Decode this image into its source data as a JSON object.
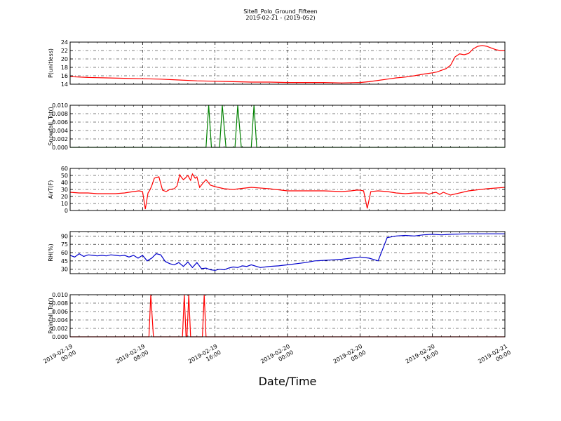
{
  "figure": {
    "title": "Site8_Polo_Ground_Fifteen",
    "subtitle": "2019-02-21 - (2019-052)",
    "xlabel": "Date/Time",
    "x_ticks": [
      "2019-02-19\n00:00",
      "2019-02-19\n08:00",
      "2019-02-19\n16:00",
      "2019-02-20\n00:00",
      "2019-02-20\n08:00",
      "2019-02-20\n16:00",
      "2019-02-21\n00:00"
    ]
  },
  "chart_data": [
    {
      "type": "line",
      "ylabel": "P(unitless)",
      "ylim": [
        14,
        24
      ],
      "yticks": [
        "14",
        "16",
        "18",
        "20",
        "22",
        "24"
      ],
      "grid": true,
      "series": [
        {
          "color": "#ff0000",
          "x": [
            0,
            2,
            4,
            6,
            8,
            10,
            12,
            14,
            16,
            18,
            20,
            22,
            24,
            26,
            28,
            30,
            32,
            33,
            34,
            35,
            36,
            37,
            38,
            39,
            40,
            40.5,
            41,
            41.5,
            42,
            42.5,
            43,
            43.5,
            44,
            44.5,
            45,
            45.5,
            46,
            46.5,
            47,
            47.5,
            48
          ],
          "y": [
            15.8,
            15.6,
            15.5,
            15.4,
            15.3,
            15.2,
            15.0,
            14.8,
            14.7,
            14.6,
            14.5,
            14.5,
            14.4,
            14.4,
            14.4,
            14.3,
            14.4,
            14.6,
            14.9,
            15.2,
            15.5,
            15.7,
            16.0,
            16.4,
            16.7,
            16.9,
            17.3,
            17.7,
            18.5,
            20.5,
            21.2,
            21.0,
            21.3,
            22.4,
            23.0,
            23.2,
            23.0,
            22.6,
            22.2,
            22.0,
            22.0
          ]
        }
      ]
    },
    {
      "type": "line",
      "ylabel": "Snowfall_Tot()",
      "ylim": [
        0,
        0.01
      ],
      "yticks": [
        "0.000",
        "0.002",
        "0.004",
        "0.006",
        "0.008",
        "0.010"
      ],
      "grid": true,
      "series": [
        {
          "color": "#008000",
          "x": [
            0,
            15,
            15.3,
            15.6,
            16.5,
            16.8,
            17.2,
            18.2,
            18.5,
            18.9,
            20.0,
            20.3,
            20.6,
            48
          ],
          "y": [
            0,
            0,
            0.01,
            0,
            0,
            0.01,
            0,
            0,
            0.01,
            0,
            0,
            0.01,
            0,
            0
          ]
        }
      ]
    },
    {
      "type": "line",
      "ylabel": "AirT(F)",
      "ylim": [
        0,
        60
      ],
      "yticks": [
        "0",
        "10",
        "20",
        "30",
        "40",
        "50",
        "60"
      ],
      "grid": true,
      "series": [
        {
          "color": "#ff0000",
          "x": [
            0,
            1,
            2,
            3,
            4,
            5,
            6,
            7,
            7.6,
            8,
            8.3,
            8.6,
            8.8,
            9.0,
            9.3,
            9.5,
            9.8,
            10.2,
            10.6,
            11.0,
            11.5,
            11.8,
            12.1,
            12.3,
            12.5,
            12.7,
            13.0,
            13.3,
            13.5,
            13.8,
            14.0,
            14.3,
            14.6,
            15.0,
            15.5,
            16,
            17,
            18,
            20,
            22,
            24,
            26,
            28,
            30,
            31,
            31.6,
            32,
            32.4,
            32.8,
            33.2,
            34,
            35,
            36,
            37,
            38,
            38.8,
            39.3,
            39.6,
            40.0,
            40.4,
            40.8,
            41.2,
            42,
            44,
            46,
            48
          ],
          "y": [
            26,
            25,
            25,
            24,
            24,
            24,
            25,
            27,
            28,
            27,
            2,
            25,
            29,
            35,
            46,
            47,
            48,
            29,
            27,
            30,
            31,
            35,
            51,
            47,
            44,
            46,
            50,
            43,
            52,
            46,
            48,
            33,
            38,
            44,
            36,
            34,
            31,
            30,
            33,
            31,
            28,
            28,
            28,
            27,
            28,
            29,
            29,
            28,
            3,
            27,
            28,
            27,
            25,
            24,
            25,
            25,
            25,
            23,
            25,
            26,
            23,
            26,
            22,
            28,
            31,
            33
          ]
        }
      ]
    },
    {
      "type": "line",
      "ylabel": "RH(%)",
      "ylim": [
        22,
        98
      ],
      "yticks": [
        "30",
        "45",
        "60",
        "75",
        "90"
      ],
      "grid": true,
      "series": [
        {
          "color": "#0000cc",
          "x": [
            0,
            0.5,
            1,
            1.5,
            2,
            2.5,
            3,
            3.5,
            4,
            4.5,
            5,
            5.5,
            6,
            6.5,
            7,
            7.5,
            8,
            8.5,
            9,
            9.5,
            10,
            10.5,
            11,
            11.5,
            12,
            12.5,
            13,
            13.5,
            14,
            14.5,
            15,
            15.5,
            16,
            16.5,
            17,
            17.5,
            18,
            18.5,
            19,
            19.5,
            20,
            21,
            22,
            23,
            24,
            25,
            26,
            27,
            28,
            29,
            30,
            31,
            32,
            33,
            34,
            35,
            36,
            37,
            38,
            39,
            40,
            41,
            42,
            44,
            46,
            48
          ],
          "y": [
            55,
            52,
            58,
            53,
            56,
            55,
            54,
            55,
            54,
            56,
            55,
            54,
            55,
            52,
            55,
            50,
            55,
            45,
            50,
            58,
            56,
            44,
            40,
            38,
            42,
            35,
            43,
            33,
            42,
            31,
            32,
            29,
            28,
            30,
            29,
            32,
            34,
            33,
            36,
            35,
            38,
            33,
            35,
            36,
            38,
            40,
            42,
            45,
            46,
            47,
            48,
            50,
            52,
            50,
            45,
            87,
            90,
            91,
            90,
            92,
            93,
            92,
            93,
            94,
            94,
            94
          ]
        }
      ]
    },
    {
      "type": "line",
      "ylabel": "Rainfall_Tot()",
      "ylim": [
        0,
        0.01
      ],
      "yticks": [
        "0.000",
        "0.002",
        "0.004",
        "0.006",
        "0.008",
        "0.010"
      ],
      "grid": true,
      "series": [
        {
          "color": "#ff0000",
          "x": [
            0,
            8.7,
            8.9,
            9.2,
            12.4,
            12.6,
            12.8,
            12.9,
            13.1,
            13.3,
            14.6,
            14.8,
            15.0,
            48
          ],
          "y": [
            0,
            0,
            0.01,
            0,
            0,
            0.01,
            0,
            0,
            0.01,
            0,
            0,
            0.01,
            0,
            0
          ]
        }
      ]
    }
  ]
}
